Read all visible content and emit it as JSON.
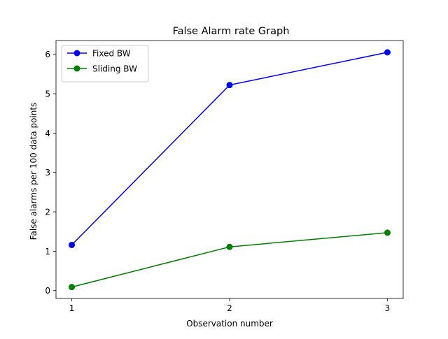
{
  "chart_data": {
    "type": "line",
    "title": "False Alarm rate Graph",
    "xlabel": "Observation number",
    "ylabel": "False alarms per 100 data points",
    "x": [
      1,
      2,
      3
    ],
    "xticks": [
      1,
      2,
      3
    ],
    "yticks": [
      0,
      1,
      2,
      3,
      4,
      5,
      6
    ],
    "xlim": [
      0.9,
      3.1
    ],
    "ylim": [
      -0.2,
      6.35
    ],
    "grid": false,
    "legend_placement": "upper-left",
    "series": [
      {
        "name": "Fixed BW",
        "color": "#0000ff",
        "marker": "circle",
        "values": [
          1.16,
          5.22,
          6.05
        ]
      },
      {
        "name": "Sliding BW",
        "color": "#008000",
        "marker": "circle",
        "values": [
          0.09,
          1.11,
          1.47
        ]
      }
    ]
  }
}
